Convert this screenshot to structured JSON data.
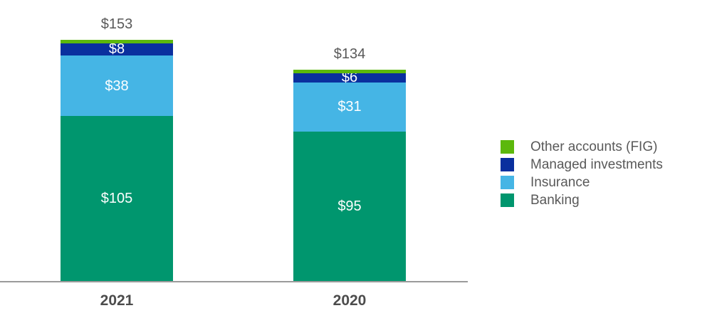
{
  "chart_data": {
    "type": "bar",
    "stacked": true,
    "title": "",
    "xlabel": "",
    "ylabel": "",
    "grid": false,
    "legend_position": "right",
    "categories": [
      "2021",
      "2020"
    ],
    "series": [
      {
        "name": "Banking",
        "color": "#00966e",
        "values": [
          105,
          95
        ],
        "labels": [
          "$105",
          "$95"
        ]
      },
      {
        "name": "Insurance",
        "color": "#45b5e5",
        "values": [
          38,
          31
        ],
        "labels": [
          "$38",
          "$31"
        ]
      },
      {
        "name": "Managed investments",
        "color": "#0a2f9e",
        "values": [
          8,
          6
        ],
        "labels": [
          "$8",
          "$6"
        ]
      },
      {
        "name": "Other accounts (FIG)",
        "color": "#5cb80c",
        "values": [
          2,
          2
        ],
        "labels": [
          "",
          ""
        ]
      }
    ],
    "totals": [
      {
        "label": "$153",
        "value": 153
      },
      {
        "label": "$134",
        "value": 134
      }
    ],
    "baseline_color": "#9b9b9b",
    "label_text_color": "#ffffff",
    "total_text_color": "#595959",
    "category_text_color": "#4c4c4c"
  },
  "legend": {
    "items": [
      {
        "label": "Other accounts (FIG)",
        "color": "#5cb80c"
      },
      {
        "label": "Managed investments",
        "color": "#0a2f9e"
      },
      {
        "label": "Insurance",
        "color": "#45b5e5"
      },
      {
        "label": "Banking",
        "color": "#00966e"
      }
    ]
  }
}
